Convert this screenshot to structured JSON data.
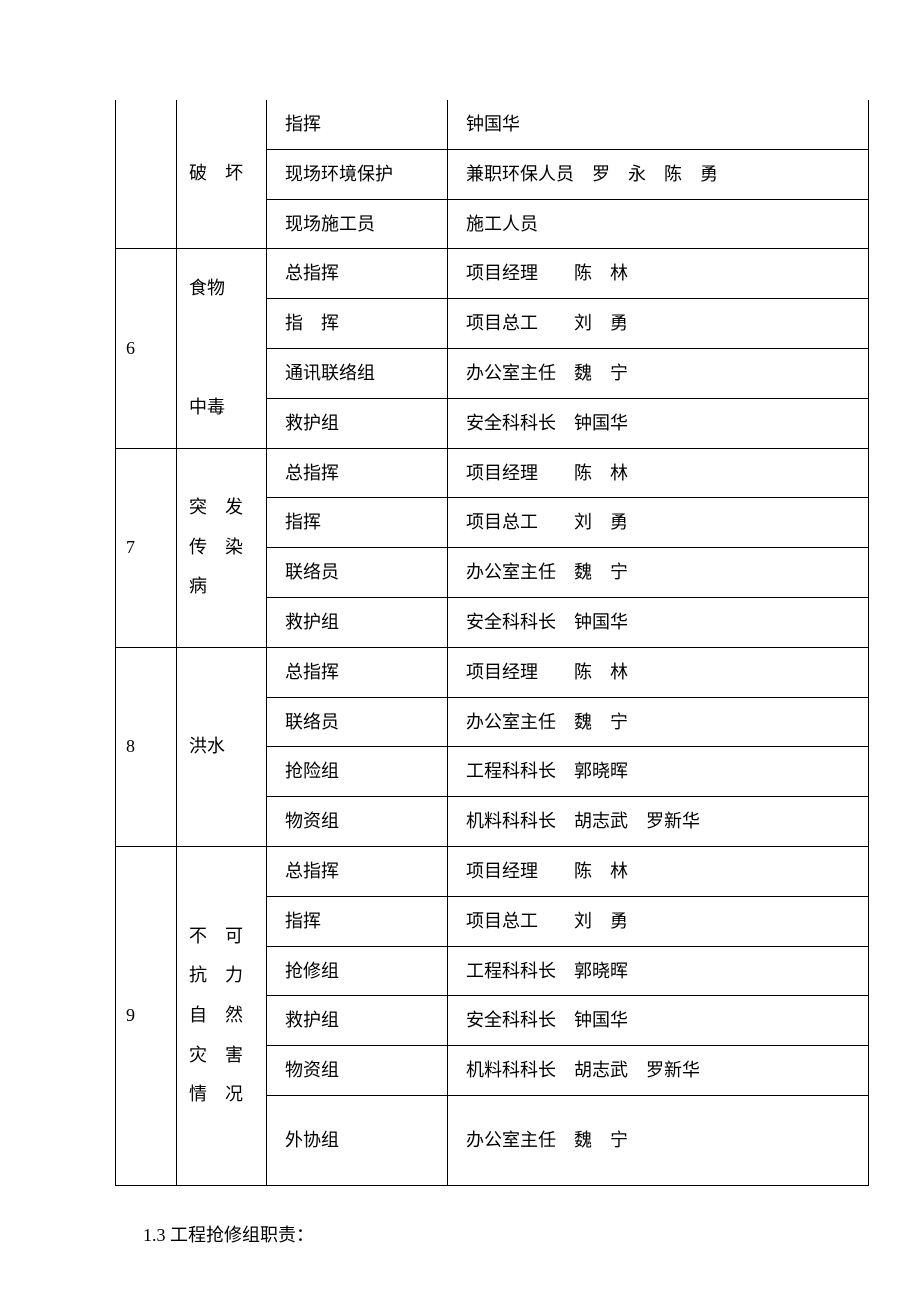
{
  "table": {
    "border_color": "#000000",
    "background_color": "#ffffff",
    "font_size": 18,
    "font_family": "SimSun",
    "columns": {
      "num_width": 38,
      "cat_width": 65,
      "role_width": 150,
      "person_width": 390
    },
    "sections": [
      {
        "num": "",
        "category": "破　坏",
        "rows": [
          {
            "role": "指挥",
            "person": "钟国华"
          },
          {
            "role": "现场环境保护",
            "person": "兼职环保人员　罗　永　陈　勇"
          },
          {
            "role": "现场施工员",
            "person": "施工人员"
          }
        ]
      },
      {
        "num": "6",
        "category": "食物\n\n中毒",
        "rows": [
          {
            "role": "总指挥",
            "person": "项目经理　　陈　林"
          },
          {
            "role": "指　挥",
            "person": "项目总工　　刘　勇"
          },
          {
            "role": "通讯联络组",
            "person": "办公室主任　魏　宁"
          },
          {
            "role": "救护组",
            "person": "安全科科长　钟国华"
          }
        ]
      },
      {
        "num": "7",
        "category": "突　发\n传　染\n病",
        "rows": [
          {
            "role": "总指挥",
            "person": "项目经理　　陈　林"
          },
          {
            "role": "指挥",
            "person": "项目总工　　刘　勇"
          },
          {
            "role": "联络员",
            "person": "办公室主任　魏　宁"
          },
          {
            "role": "救护组",
            "person": "安全科科长　钟国华"
          }
        ]
      },
      {
        "num": "8",
        "category": "洪水",
        "rows": [
          {
            "role": "总指挥",
            "person": "项目经理　　陈　林"
          },
          {
            "role": "联络员",
            "person": "办公室主任　魏　宁"
          },
          {
            "role": "抢险组",
            "person": "工程科科长　郭晓晖"
          },
          {
            "role": "物资组",
            "person": "机料科科长　胡志武　罗新华"
          }
        ]
      },
      {
        "num": "9",
        "category": "不　可\n抗　力\n自　然\n灾　害\n情　况",
        "rows": [
          {
            "role": "总指挥",
            "person": "项目经理　　陈　林"
          },
          {
            "role": "指挥",
            "person": "项目总工　　刘　勇"
          },
          {
            "role": "抢修组",
            "person": "工程科科长　郭晓晖"
          },
          {
            "role": "救护组",
            "person": "安全科科长　钟国华"
          },
          {
            "role": "物资组",
            "person": "机料科科长　胡志武　罗新华"
          },
          {
            "role": "外协组",
            "person": "办公室主任　魏　宁"
          }
        ]
      }
    ]
  },
  "footer": "1.3  工程抢修组职责："
}
